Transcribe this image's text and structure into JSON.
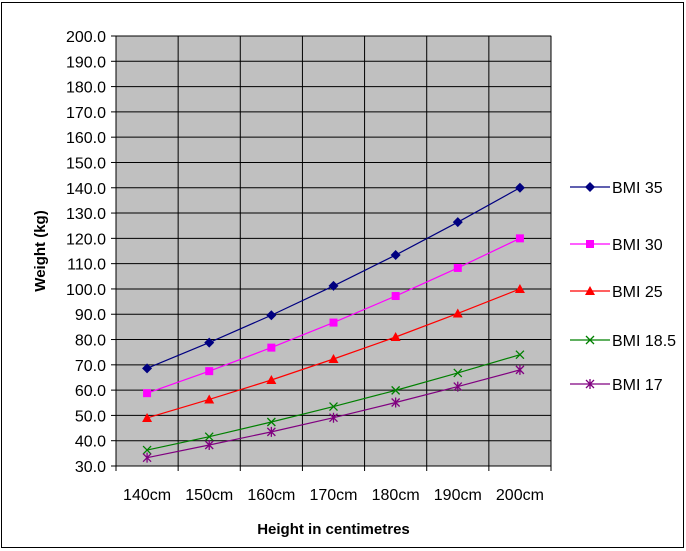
{
  "chart_data": {
    "type": "line",
    "xlabel": "Height in centimetres",
    "ylabel": "Weight (kg)",
    "categories": [
      "140cm",
      "150cm",
      "160cm",
      "170cm",
      "180cm",
      "190cm",
      "200cm"
    ],
    "ylim": [
      30,
      200
    ],
    "ytick_step": 10,
    "ytick_labels": [
      "30.0",
      "40.0",
      "50.0",
      "60.0",
      "70.0",
      "80.0",
      "90.0",
      "100.0",
      "110.0",
      "120.0",
      "130.0",
      "140.0",
      "150.0",
      "160.0",
      "170.0",
      "180.0",
      "190.0",
      "200.0"
    ],
    "grid": true,
    "plot_background": "#c0c0c0",
    "legend_position": "right",
    "series": [
      {
        "name": "BMI 35",
        "color": "#000080",
        "marker": "diamond",
        "values": [
          68.6,
          78.8,
          89.6,
          101.2,
          113.4,
          126.4,
          140.0
        ]
      },
      {
        "name": "BMI 30",
        "color": "#ff00ff",
        "marker": "square",
        "values": [
          58.8,
          67.5,
          76.8,
          86.7,
          97.2,
          108.3,
          120.0
        ]
      },
      {
        "name": "BMI 25",
        "color": "#ff0000",
        "marker": "triangle",
        "values": [
          49.0,
          56.3,
          64.0,
          72.3,
          81.0,
          90.3,
          100.0
        ]
      },
      {
        "name": "BMI 18.5",
        "color": "#008000",
        "marker": "x",
        "values": [
          36.3,
          41.6,
          47.4,
          53.5,
          59.9,
          66.8,
          74.0
        ]
      },
      {
        "name": "BMI 17",
        "color": "#800080",
        "marker": "star",
        "values": [
          33.3,
          38.3,
          43.5,
          49.1,
          55.1,
          61.4,
          68.0
        ]
      }
    ]
  }
}
